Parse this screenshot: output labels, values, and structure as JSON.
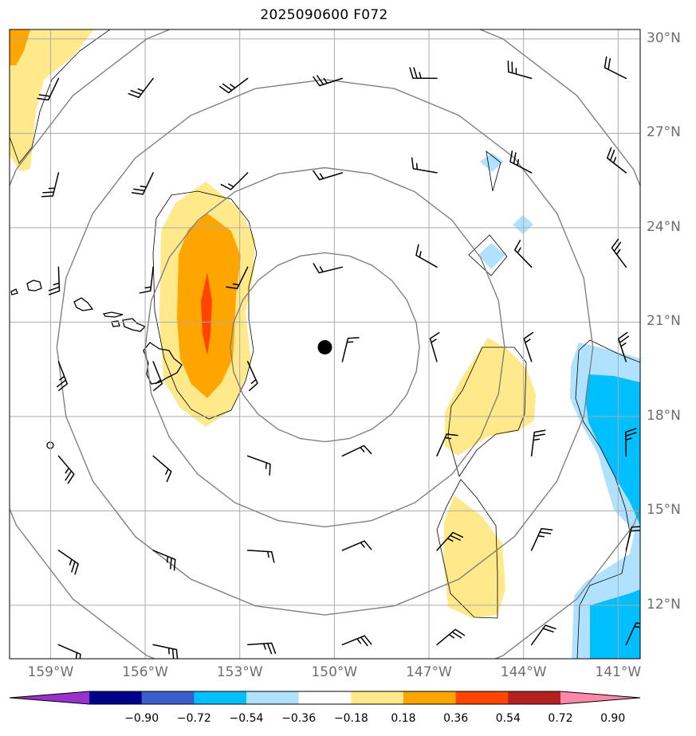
{
  "title": "2025090600 F072",
  "map": {
    "lat_range": [
      10.3,
      30.3
    ],
    "lon_range": [
      -160.3,
      -140.3
    ],
    "lat_labels": [
      "30°N",
      "27°N",
      "24°N",
      "21°N",
      "18°N",
      "15°N",
      "12°N"
    ],
    "lat_values": [
      30,
      27,
      24,
      21,
      18,
      15,
      12
    ],
    "lon_labels": [
      "159°W",
      "156°W",
      "153°W",
      "150°W",
      "147°W",
      "144°W",
      "141°W"
    ],
    "lon_values": [
      -159,
      -156,
      -153,
      -150,
      -147,
      -144,
      -141
    ],
    "storm_center": {
      "lon": -150.3,
      "lat": 20.2
    },
    "range_rings_deg": [
      3,
      5.7,
      8.5,
      11.3
    ],
    "wind_barb_lons": [
      -159,
      -156,
      -153,
      -150,
      -147,
      -144,
      -141
    ],
    "wind_barb_lats": [
      29,
      26,
      23,
      20,
      17,
      14,
      11
    ]
  },
  "colorbar": {
    "ticks": [
      "−0.90",
      "−0.72",
      "−0.54",
      "−0.36",
      "−0.18",
      "0.18",
      "0.36",
      "0.54",
      "0.72",
      "0.90"
    ],
    "colors": [
      "#9932cc",
      "#00008b",
      "#3a5fcd",
      "#00bfff",
      "#b0e2ff",
      "#ffffff",
      "#ffe98a",
      "#ffa500",
      "#ff4500",
      "#b22222",
      "#ff88aa"
    ]
  },
  "field_colors": {
    "c1": "#ffe98a",
    "c2": "#ffa500",
    "c3": "#ff4500",
    "b1": "#b0e2ff",
    "b2": "#00bfff"
  }
}
